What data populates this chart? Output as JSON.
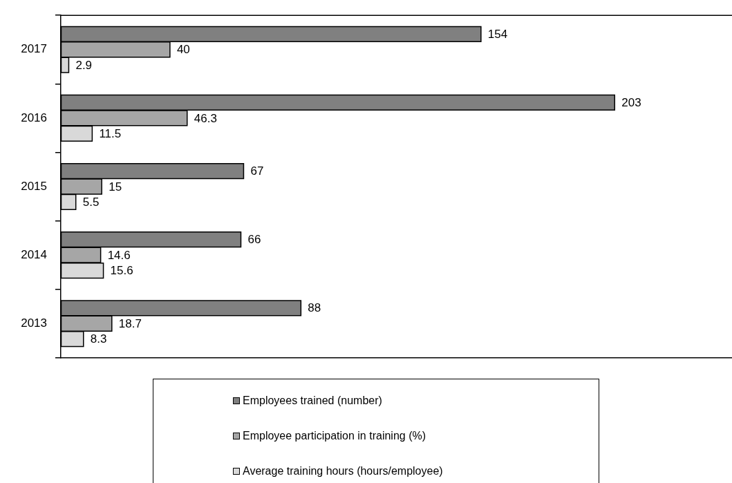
{
  "chart_data": {
    "type": "bar",
    "orientation": "horizontal",
    "categories": [
      "2017",
      "2016",
      "2015",
      "2014",
      "2013"
    ],
    "series": [
      {
        "name": "Employees trained (number)",
        "color": "#808080",
        "values": [
          154,
          203,
          67,
          66,
          88
        ]
      },
      {
        "name": "Employee participation in training (%)",
        "color": "#a6a6a6",
        "values": [
          40,
          46.3,
          15,
          14.6,
          18.7
        ]
      },
      {
        "name": "Average training hours (hours/employee)",
        "color": "#d9d9d9",
        "values": [
          2.9,
          11.5,
          5.5,
          15.6,
          8.3
        ]
      }
    ],
    "xlim": [
      0,
      246
    ],
    "data_labels": true,
    "legend": "bottom",
    "tick_labels": "y"
  }
}
